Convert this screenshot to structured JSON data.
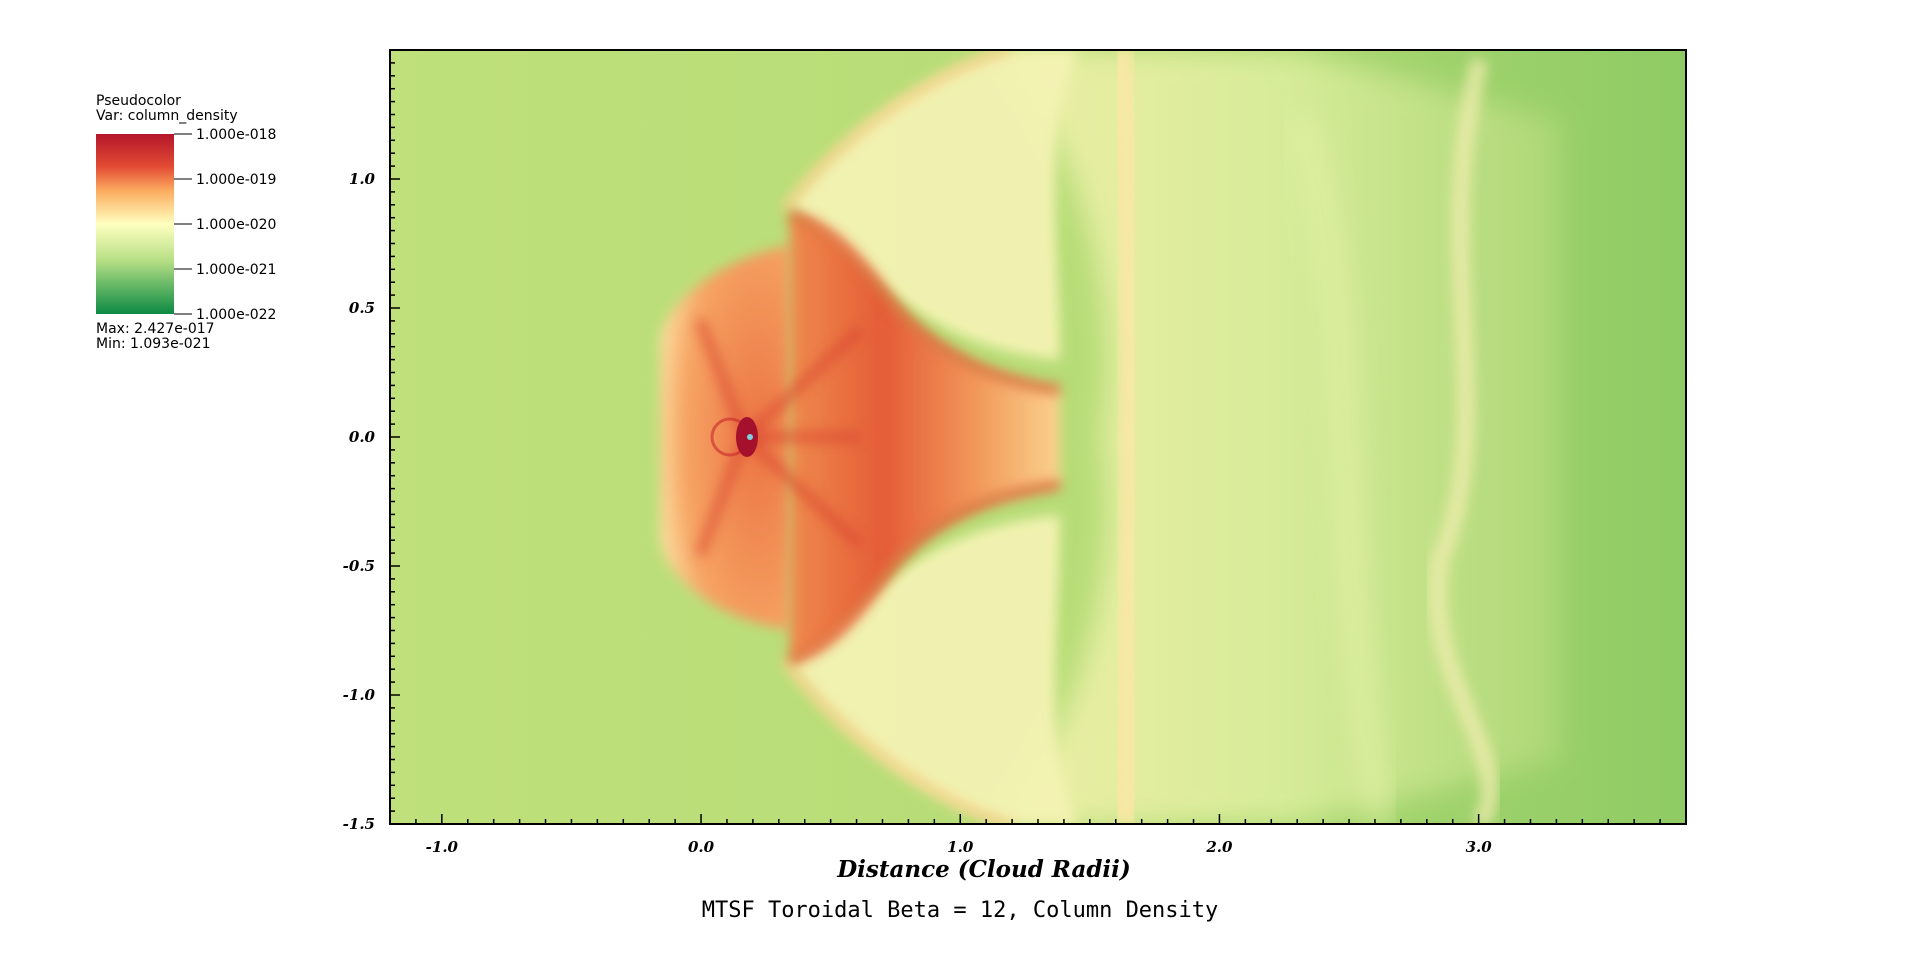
{
  "legend": {
    "plot_type": "Pseudocolor",
    "variable": "Var: column_density",
    "tick_labels": [
      "1.000e-018",
      "1.000e-019",
      "1.000e-020",
      "1.000e-021",
      "1.000e-022"
    ],
    "max_label": "Max:  2.427e-017",
    "min_label": "Min:  1.093e-021",
    "colors": [
      "#b5152b",
      "#e34a33",
      "#fcae61",
      "#ffffc0",
      "#b8e086",
      "#0b8a43"
    ]
  },
  "chart_data": {
    "type": "heatmap",
    "title": "MTSF Toroidal Beta = 12, Column Density",
    "xlabel": "Distance (Cloud Radii)",
    "ylabel": "",
    "xlim": [
      -1.2,
      3.8
    ],
    "ylim": [
      -1.5,
      1.5
    ],
    "x_ticks": [
      -1.0,
      0.0,
      1.0,
      2.0,
      3.0
    ],
    "x_tick_labels": [
      "-1.0",
      "0.0",
      "1.0",
      "2.0",
      "3.0"
    ],
    "y_ticks": [
      1.0,
      0.5,
      0.0,
      -0.5,
      -1.0,
      -1.5
    ],
    "y_tick_labels": [
      "1.0",
      "0.5",
      "0.0",
      "-0.5",
      "-1.0",
      "-1.5"
    ],
    "colorbar_range": [
      "1.000e-022",
      "1.000e-018"
    ],
    "color_scale": "log",
    "data_max": "2.427e-017",
    "data_min": "1.093e-021",
    "grid": false,
    "colors": {
      "background": "#bfe07b",
      "bow_shock": "#e8643c",
      "core": "#a5102c",
      "wake": "#f7f3b0",
      "far_wake": "#a8d46e"
    }
  }
}
